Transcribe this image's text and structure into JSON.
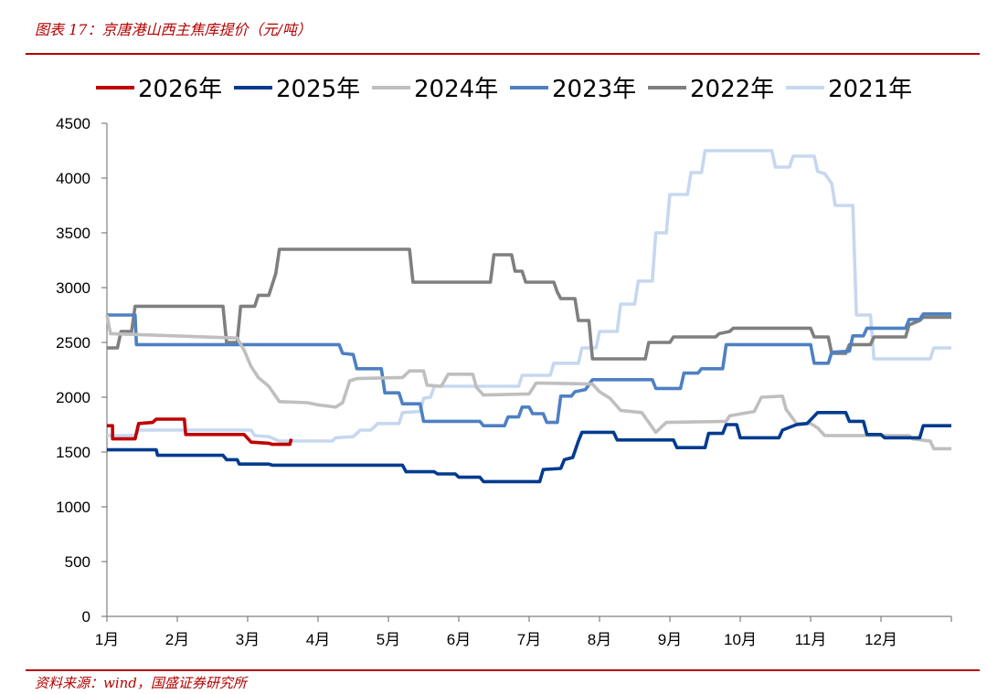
{
  "figure": {
    "title": "图表 17：京唐港山西主焦库提价（元/吨）",
    "source": "资料来源：wind，国盛证券研究所"
  },
  "chart_data": {
    "type": "line",
    "title": "",
    "xlabel": "",
    "ylabel": "",
    "x_ticks": [
      "1月",
      "2月",
      "3月",
      "4月",
      "5月",
      "6月",
      "7月",
      "8月",
      "9月",
      "10月",
      "11月",
      "12月"
    ],
    "y_ticks": [
      0,
      500,
      1000,
      1500,
      2000,
      2500,
      3000,
      3500,
      4000,
      4500
    ],
    "ylim": [
      0,
      4500
    ],
    "xlim": [
      1,
      13
    ],
    "x_unit": "month",
    "grid": false,
    "legend_position": "top",
    "series": [
      {
        "name": "2026年",
        "color": "#c00000",
        "points": [
          [
            1.0,
            1740
          ],
          [
            1.08,
            1740
          ],
          [
            1.08,
            1620
          ],
          [
            1.4,
            1620
          ],
          [
            1.45,
            1760
          ],
          [
            1.65,
            1770
          ],
          [
            1.7,
            1800
          ],
          [
            2.1,
            1800
          ],
          [
            2.12,
            1660
          ],
          [
            2.95,
            1660
          ],
          [
            3.05,
            1590
          ],
          [
            3.3,
            1580
          ],
          [
            3.35,
            1570
          ],
          [
            3.6,
            1570
          ],
          [
            3.62,
            1620
          ]
        ]
      },
      {
        "name": "2025年",
        "color": "#003b8e",
        "points": [
          [
            1.0,
            1520
          ],
          [
            1.7,
            1520
          ],
          [
            1.72,
            1470
          ],
          [
            2.65,
            1470
          ],
          [
            2.7,
            1430
          ],
          [
            2.85,
            1430
          ],
          [
            2.88,
            1390
          ],
          [
            3.3,
            1390
          ],
          [
            3.35,
            1380
          ],
          [
            5.2,
            1380
          ],
          [
            5.25,
            1320
          ],
          [
            5.65,
            1320
          ],
          [
            5.7,
            1300
          ],
          [
            5.95,
            1300
          ],
          [
            6.0,
            1270
          ],
          [
            6.3,
            1270
          ],
          [
            6.35,
            1230
          ],
          [
            7.15,
            1230
          ],
          [
            7.2,
            1340
          ],
          [
            7.45,
            1350
          ],
          [
            7.5,
            1430
          ],
          [
            7.62,
            1450
          ],
          [
            7.7,
            1600
          ],
          [
            7.75,
            1680
          ],
          [
            8.2,
            1680
          ],
          [
            8.25,
            1610
          ],
          [
            9.05,
            1610
          ],
          [
            9.1,
            1540
          ],
          [
            9.5,
            1540
          ],
          [
            9.55,
            1670
          ],
          [
            9.75,
            1670
          ],
          [
            9.8,
            1750
          ],
          [
            9.95,
            1750
          ],
          [
            10.0,
            1630
          ],
          [
            10.55,
            1630
          ],
          [
            10.6,
            1700
          ],
          [
            10.8,
            1750
          ],
          [
            10.95,
            1760
          ],
          [
            11.1,
            1860
          ],
          [
            11.5,
            1860
          ],
          [
            11.55,
            1780
          ],
          [
            11.75,
            1780
          ],
          [
            11.8,
            1660
          ],
          [
            12.0,
            1660
          ],
          [
            12.05,
            1630
          ],
          [
            12.55,
            1630
          ],
          [
            12.6,
            1740
          ],
          [
            13.0,
            1740
          ]
        ]
      },
      {
        "name": "2024年",
        "color": "#bfbfbf",
        "points": [
          [
            1.0,
            2750
          ],
          [
            1.05,
            2580
          ],
          [
            2.85,
            2540
          ],
          [
            2.95,
            2430
          ],
          [
            3.05,
            2280
          ],
          [
            3.15,
            2180
          ],
          [
            3.3,
            2100
          ],
          [
            3.45,
            1960
          ],
          [
            3.85,
            1950
          ],
          [
            4.0,
            1930
          ],
          [
            4.25,
            1910
          ],
          [
            4.35,
            1950
          ],
          [
            4.45,
            2150
          ],
          [
            4.55,
            2170
          ],
          [
            5.2,
            2180
          ],
          [
            5.3,
            2240
          ],
          [
            5.5,
            2240
          ],
          [
            5.55,
            2110
          ],
          [
            5.75,
            2100
          ],
          [
            5.85,
            2210
          ],
          [
            6.2,
            2210
          ],
          [
            6.25,
            2090
          ],
          [
            6.35,
            2020
          ],
          [
            7.0,
            2030
          ],
          [
            7.1,
            2130
          ],
          [
            7.9,
            2120
          ],
          [
            8.0,
            2050
          ],
          [
            8.15,
            1990
          ],
          [
            8.3,
            1880
          ],
          [
            8.6,
            1860
          ],
          [
            8.7,
            1770
          ],
          [
            8.8,
            1680
          ],
          [
            8.95,
            1770
          ],
          [
            9.8,
            1780
          ],
          [
            9.85,
            1830
          ],
          [
            10.2,
            1870
          ],
          [
            10.3,
            2000
          ],
          [
            10.6,
            2010
          ],
          [
            10.65,
            1890
          ],
          [
            10.8,
            1760
          ],
          [
            11.0,
            1760
          ],
          [
            11.1,
            1720
          ],
          [
            11.2,
            1650
          ],
          [
            12.4,
            1650
          ],
          [
            12.45,
            1620
          ],
          [
            12.7,
            1600
          ],
          [
            12.75,
            1530
          ],
          [
            13.0,
            1530
          ]
        ]
      },
      {
        "name": "2023年",
        "color": "#4e80c2",
        "points": [
          [
            1.0,
            2750
          ],
          [
            1.4,
            2750
          ],
          [
            1.42,
            2480
          ],
          [
            3.15,
            2480
          ],
          [
            4.3,
            2480
          ],
          [
            4.35,
            2400
          ],
          [
            4.5,
            2390
          ],
          [
            4.55,
            2260
          ],
          [
            4.9,
            2260
          ],
          [
            4.95,
            2040
          ],
          [
            5.15,
            2040
          ],
          [
            5.2,
            1940
          ],
          [
            5.45,
            1940
          ],
          [
            5.5,
            1780
          ],
          [
            6.3,
            1780
          ],
          [
            6.35,
            1740
          ],
          [
            6.65,
            1740
          ],
          [
            6.7,
            1820
          ],
          [
            6.85,
            1820
          ],
          [
            6.9,
            1910
          ],
          [
            7.0,
            1910
          ],
          [
            7.05,
            1850
          ],
          [
            7.2,
            1850
          ],
          [
            7.25,
            1770
          ],
          [
            7.4,
            1770
          ],
          [
            7.45,
            2010
          ],
          [
            7.6,
            2010
          ],
          [
            7.65,
            2050
          ],
          [
            7.8,
            2070
          ],
          [
            7.9,
            2160
          ],
          [
            8.75,
            2160
          ],
          [
            8.8,
            2080
          ],
          [
            9.15,
            2080
          ],
          [
            9.2,
            2220
          ],
          [
            9.4,
            2220
          ],
          [
            9.45,
            2260
          ],
          [
            9.75,
            2260
          ],
          [
            9.8,
            2480
          ],
          [
            11.0,
            2480
          ],
          [
            11.05,
            2310
          ],
          [
            11.25,
            2310
          ],
          [
            11.3,
            2410
          ],
          [
            11.55,
            2420
          ],
          [
            11.6,
            2560
          ],
          [
            11.75,
            2560
          ],
          [
            11.8,
            2630
          ],
          [
            12.35,
            2630
          ],
          [
            12.4,
            2710
          ],
          [
            12.55,
            2710
          ],
          [
            12.6,
            2760
          ],
          [
            13.0,
            2760
          ]
        ]
      },
      {
        "name": "2022年",
        "color": "#7f7f7f",
        "points": [
          [
            1.0,
            2450
          ],
          [
            1.15,
            2450
          ],
          [
            1.2,
            2600
          ],
          [
            1.35,
            2600
          ],
          [
            1.4,
            2830
          ],
          [
            2.65,
            2830
          ],
          [
            2.7,
            2500
          ],
          [
            2.85,
            2500
          ],
          [
            2.9,
            2830
          ],
          [
            3.1,
            2830
          ],
          [
            3.15,
            2930
          ],
          [
            3.3,
            2930
          ],
          [
            3.4,
            3130
          ],
          [
            3.45,
            3350
          ],
          [
            5.3,
            3350
          ],
          [
            5.35,
            3050
          ],
          [
            6.45,
            3050
          ],
          [
            6.5,
            3300
          ],
          [
            6.75,
            3300
          ],
          [
            6.8,
            3150
          ],
          [
            6.9,
            3150
          ],
          [
            6.95,
            3050
          ],
          [
            7.35,
            3050
          ],
          [
            7.4,
            2960
          ],
          [
            7.45,
            2900
          ],
          [
            7.65,
            2900
          ],
          [
            7.7,
            2700
          ],
          [
            7.85,
            2700
          ],
          [
            7.9,
            2350
          ],
          [
            8.65,
            2350
          ],
          [
            8.7,
            2500
          ],
          [
            9.0,
            2500
          ],
          [
            9.05,
            2550
          ],
          [
            9.65,
            2550
          ],
          [
            9.7,
            2580
          ],
          [
            9.85,
            2600
          ],
          [
            9.9,
            2630
          ],
          [
            11.0,
            2630
          ],
          [
            11.05,
            2550
          ],
          [
            11.25,
            2550
          ],
          [
            11.3,
            2400
          ],
          [
            11.5,
            2400
          ],
          [
            11.55,
            2480
          ],
          [
            11.85,
            2480
          ],
          [
            11.9,
            2550
          ],
          [
            12.35,
            2550
          ],
          [
            12.4,
            2660
          ],
          [
            12.55,
            2700
          ],
          [
            12.6,
            2730
          ],
          [
            13.0,
            2730
          ]
        ]
      },
      {
        "name": "2021年",
        "color": "#c6d8ef",
        "points": [
          [
            1.0,
            1650
          ],
          [
            1.4,
            1650
          ],
          [
            1.45,
            1700
          ],
          [
            3.05,
            1700
          ],
          [
            3.1,
            1650
          ],
          [
            3.3,
            1640
          ],
          [
            3.45,
            1600
          ],
          [
            4.2,
            1600
          ],
          [
            4.25,
            1630
          ],
          [
            4.5,
            1640
          ],
          [
            4.6,
            1700
          ],
          [
            4.75,
            1700
          ],
          [
            4.85,
            1760
          ],
          [
            5.15,
            1760
          ],
          [
            5.2,
            1860
          ],
          [
            5.45,
            1870
          ],
          [
            5.5,
            1990
          ],
          [
            5.6,
            2000
          ],
          [
            5.65,
            2100
          ],
          [
            6.85,
            2100
          ],
          [
            6.9,
            2200
          ],
          [
            7.3,
            2200
          ],
          [
            7.35,
            2310
          ],
          [
            7.7,
            2310
          ],
          [
            7.75,
            2450
          ],
          [
            7.95,
            2450
          ],
          [
            8.0,
            2600
          ],
          [
            8.25,
            2600
          ],
          [
            8.3,
            2850
          ],
          [
            8.5,
            2850
          ],
          [
            8.55,
            3060
          ],
          [
            8.75,
            3060
          ],
          [
            8.8,
            3500
          ],
          [
            8.95,
            3500
          ],
          [
            9.0,
            3850
          ],
          [
            9.25,
            3850
          ],
          [
            9.3,
            4050
          ],
          [
            9.45,
            4050
          ],
          [
            9.5,
            4250
          ],
          [
            10.45,
            4250
          ],
          [
            10.5,
            4100
          ],
          [
            10.7,
            4100
          ],
          [
            10.75,
            4200
          ],
          [
            11.05,
            4200
          ],
          [
            11.1,
            4060
          ],
          [
            11.2,
            4040
          ],
          [
            11.3,
            3950
          ],
          [
            11.35,
            3750
          ],
          [
            11.6,
            3750
          ],
          [
            11.65,
            2750
          ],
          [
            11.85,
            2750
          ],
          [
            11.9,
            2350
          ],
          [
            12.7,
            2350
          ],
          [
            12.75,
            2450
          ],
          [
            13.0,
            2450
          ]
        ]
      }
    ]
  }
}
